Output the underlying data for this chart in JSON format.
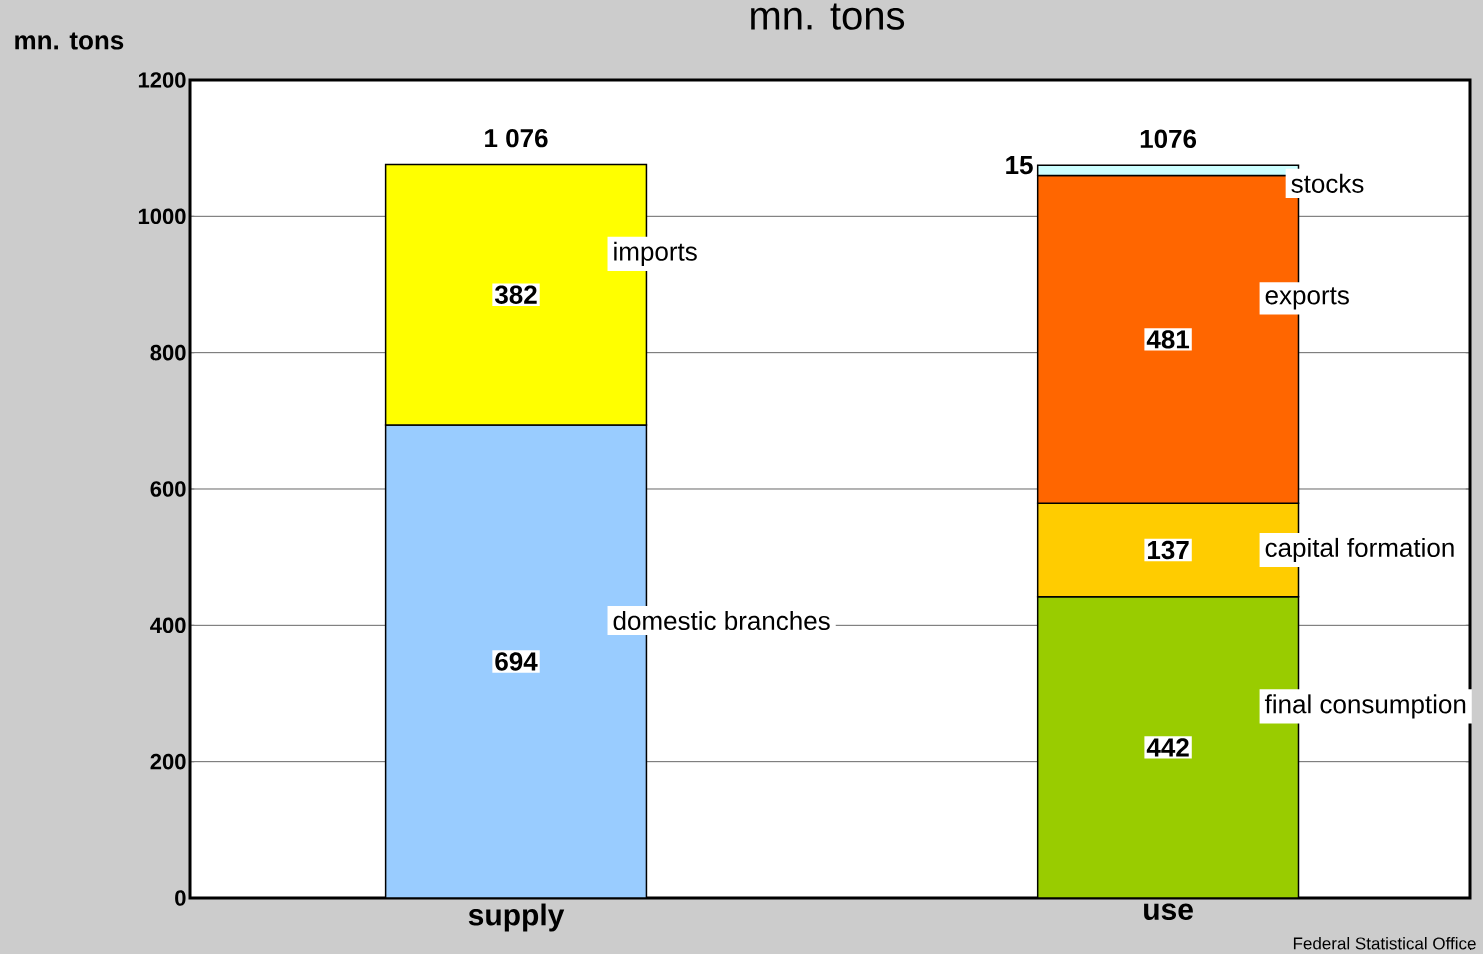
{
  "chart_data": {
    "type": "bar",
    "title": "mn. tons",
    "ylabel": "mn. tons",
    "categories": [
      "supply",
      "use"
    ],
    "stacked": true,
    "data_labels": true,
    "grid": "y",
    "ylim": [
      0,
      1200
    ],
    "yticks": [
      0,
      200,
      400,
      600,
      800,
      1000,
      1200
    ],
    "series": [
      {
        "name": "domestic branches",
        "color": "#99ccff",
        "values": [
          694,
          null
        ]
      },
      {
        "name": "imports",
        "color": "#ffff00",
        "values": [
          382,
          null
        ]
      },
      {
        "name": "final consumption",
        "color": "#99cc00",
        "values": [
          null,
          442
        ]
      },
      {
        "name": "capital formation",
        "color": "#ffcc00",
        "values": [
          null,
          137
        ]
      },
      {
        "name": "exports",
        "color": "#ff6600",
        "values": [
          null,
          481
        ]
      },
      {
        "name": "stocks",
        "color": "#ccffff",
        "values": [
          null,
          15
        ]
      }
    ],
    "totals": [
      "1 076",
      "1076"
    ],
    "annotations": [
      "Federal Statistical Office"
    ]
  }
}
